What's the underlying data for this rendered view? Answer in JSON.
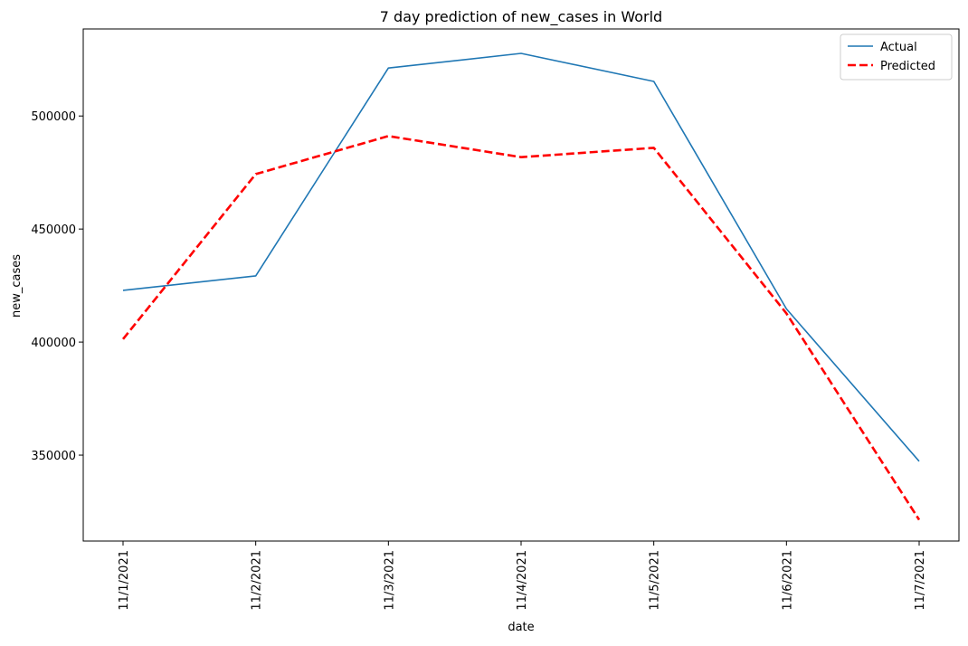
{
  "chart_data": {
    "type": "line",
    "title": "7 day prediction of new_cases in World",
    "xlabel": "date",
    "ylabel": "new_cases",
    "categories": [
      "11/1/2021",
      "11/2/2021",
      "11/3/2021",
      "11/4/2021",
      "11/5/2021",
      "11/6/2021",
      "11/7/2021"
    ],
    "series": [
      {
        "name": "Actual",
        "color": "#1f77b4",
        "style": "solid",
        "values": [
          422900,
          429300,
          521200,
          527700,
          515300,
          414700,
          347300
        ]
      },
      {
        "name": "Predicted",
        "color": "#ff0000",
        "style": "dashed",
        "values": [
          401300,
          474300,
          491100,
          481800,
          485900,
          412700,
          321400
        ]
      }
    ],
    "ylim": [
      312000,
      538500
    ],
    "yticks": [
      350000,
      400000,
      450000,
      500000
    ],
    "ytick_labels": [
      "350000",
      "400000",
      "450000",
      "500000"
    ],
    "grid": false,
    "legend_position": "top-right"
  }
}
